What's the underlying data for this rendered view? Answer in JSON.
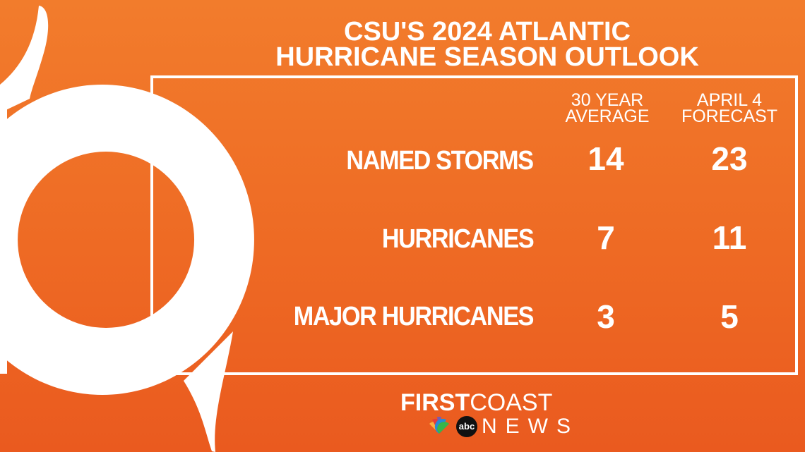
{
  "title": [
    "CSU'S 2024 ATLANTIC",
    "HURRICANE SEASON OUTLOOK"
  ],
  "table": {
    "columns": [
      [
        "30 YEAR",
        "AVERAGE"
      ],
      [
        "APRIL 4",
        "FORECAST"
      ]
    ],
    "rows": [
      [
        "NAMED STORMS",
        14,
        23
      ],
      [
        "HURRICANES",
        7,
        11
      ],
      [
        "MAJOR HURRICANES",
        3,
        5
      ]
    ]
  },
  "logo": {
    "first": "FIRST",
    "coast": "COAST",
    "news": "NEWS",
    "network": "abc"
  }
}
